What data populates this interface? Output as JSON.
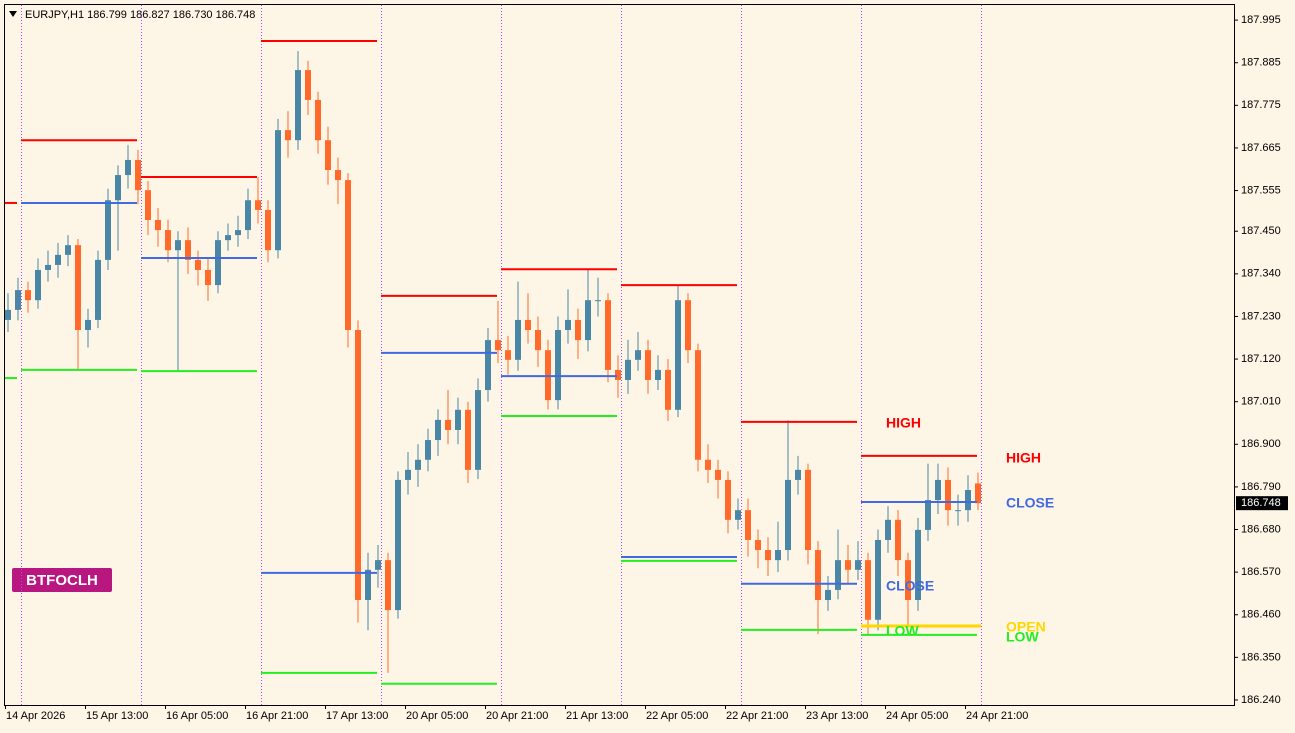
{
  "chart_data": {
    "type": "candlestick",
    "header": "EURJPY,H1  186.799 186.827 186.730 186.748",
    "badge": "BTFOCLH",
    "up_color": "#4a86a6",
    "down_color": "#ff6a2a",
    "ylim": [
      186.227,
      188.034
    ],
    "yticks": [
      187.995,
      187.885,
      187.775,
      187.665,
      187.555,
      {
        "value": 187.45,
        "label": "187.450"
      },
      {
        "value": 187.34,
        "label": "187.340"
      },
      {
        "value": 187.23,
        "label": "187.230"
      },
      {
        "value": 187.12,
        "label": "187.120"
      },
      {
        "value": 187.01,
        "label": "187.010"
      },
      {
        "value": 186.9,
        "label": "186.900"
      },
      {
        "value": 186.79,
        "label": "186.790"
      },
      {
        "value": 186.68,
        "label": "186.680"
      },
      {
        "value": 186.57,
        "label": "186.570"
      },
      {
        "value": 186.46,
        "label": "186.460"
      },
      {
        "value": 186.35,
        "label": "186.350"
      },
      {
        "value": 186.24,
        "label": "186.240"
      }
    ],
    "x_labels": [
      "14 Apr 2026",
      "15 Apr 13:00",
      "16 Apr 05:00",
      "16 Apr 21:00",
      "17 Apr 13:00",
      "20 Apr 05:00",
      "20 Apr 21:00",
      "21 Apr 13:00",
      "22 Apr 05:00",
      "22 Apr 21:00",
      "23 Apr 13:00",
      "24 Apr 05:00",
      "24 Apr 21:00"
    ],
    "open": [
      187.221,
      187.247,
      187.298,
      187.272,
      187.35,
      187.363,
      187.389,
      187.414,
      187.195,
      187.221,
      187.376,
      187.53,
      187.595,
      187.634,
      187.556,
      187.479,
      187.453,
      187.401,
      187.427,
      187.376,
      187.35,
      187.311,
      187.427,
      187.44,
      187.453,
      187.53,
      187.505,
      187.401,
      187.711,
      187.685,
      187.866,
      187.789,
      187.685,
      187.608,
      187.582,
      187.195,
      186.498,
      186.576,
      186.601,
      186.472,
      186.808,
      186.834,
      186.86,
      186.911,
      186.963,
      186.937,
      186.989,
      186.834,
      187.04,
      187.169,
      187.143,
      187.118,
      187.221,
      187.195,
      187.143,
      187.014,
      187.195,
      187.221,
      187.169,
      187.272,
      187.272,
      187.092,
      187.066,
      187.118,
      187.143,
      187.066,
      187.092,
      186.989,
      187.272,
      187.143,
      186.86,
      186.834,
      186.808,
      186.705,
      186.73,
      186.653,
      186.627,
      186.601,
      186.627,
      186.808,
      186.834,
      186.627,
      186.498,
      186.524,
      186.601,
      186.576,
      186.601,
      186.447,
      186.653,
      186.705,
      186.601,
      186.498,
      186.679,
      186.756,
      186.808,
      186.73,
      186.73,
      186.799
    ],
    "high": [
      187.29,
      187.33,
      187.32,
      187.38,
      187.4,
      187.42,
      187.44,
      187.43,
      187.25,
      187.4,
      187.56,
      187.62,
      187.672,
      187.66,
      187.58,
      187.51,
      187.48,
      187.45,
      187.46,
      187.4,
      187.38,
      187.45,
      187.47,
      187.49,
      187.56,
      187.59,
      187.53,
      187.74,
      187.76,
      187.915,
      187.89,
      187.81,
      187.72,
      187.64,
      187.6,
      187.22,
      186.62,
      186.64,
      186.62,
      186.83,
      186.88,
      186.9,
      186.94,
      186.99,
      187.04,
      187.02,
      187.01,
      187.07,
      187.2,
      187.27,
      187.18,
      187.32,
      187.29,
      187.23,
      187.17,
      187.23,
      187.3,
      187.25,
      187.35,
      187.33,
      187.29,
      187.13,
      187.17,
      187.19,
      187.17,
      187.13,
      187.12,
      187.31,
      187.29,
      187.16,
      186.9,
      186.86,
      186.83,
      186.76,
      186.76,
      186.68,
      186.66,
      186.7,
      186.962,
      186.87,
      186.85,
      186.65,
      186.56,
      186.68,
      186.64,
      186.65,
      186.62,
      186.68,
      186.74,
      186.73,
      186.62,
      186.71,
      186.85,
      186.85,
      186.84,
      186.77,
      186.82,
      186.827
    ],
    "low": [
      187.19,
      187.22,
      187.24,
      187.25,
      187.32,
      187.33,
      187.36,
      187.09,
      187.15,
      187.2,
      187.35,
      187.4,
      187.56,
      187.52,
      187.44,
      187.41,
      187.37,
      187.09,
      187.34,
      187.31,
      187.27,
      187.29,
      187.4,
      187.41,
      187.43,
      187.47,
      187.37,
      187.38,
      187.64,
      187.66,
      187.75,
      187.65,
      187.57,
      187.52,
      187.15,
      186.44,
      186.42,
      186.53,
      186.31,
      186.45,
      186.77,
      186.79,
      186.83,
      186.87,
      186.9,
      186.9,
      186.8,
      186.81,
      187.01,
      187.11,
      187.08,
      187.09,
      187.16,
      187.1,
      186.99,
      186.99,
      187.16,
      187.12,
      187.14,
      187.23,
      187.06,
      187.02,
      187.03,
      187.09,
      187.03,
      187.04,
      186.96,
      186.97,
      187.11,
      186.83,
      186.8,
      186.76,
      186.67,
      186.68,
      186.61,
      186.58,
      186.56,
      186.57,
      186.6,
      186.77,
      186.59,
      186.41,
      186.47,
      186.5,
      186.54,
      186.55,
      186.41,
      186.42,
      186.62,
      186.56,
      186.43,
      186.47,
      186.65,
      186.72,
      186.69,
      186.69,
      186.7,
      186.73
    ],
    "close": [
      187.247,
      187.298,
      187.272,
      187.35,
      187.363,
      187.389,
      187.414,
      187.195,
      187.221,
      187.376,
      187.53,
      187.595,
      187.634,
      187.556,
      187.479,
      187.453,
      187.401,
      187.427,
      187.376,
      187.35,
      187.311,
      187.427,
      187.44,
      187.453,
      187.53,
      187.505,
      187.401,
      187.711,
      187.685,
      187.866,
      187.789,
      187.685,
      187.608,
      187.582,
      187.195,
      186.498,
      186.576,
      186.601,
      186.472,
      186.808,
      186.834,
      186.86,
      186.911,
      186.963,
      186.937,
      186.989,
      186.834,
      187.04,
      187.169,
      187.143,
      187.118,
      187.221,
      187.195,
      187.143,
      187.014,
      187.195,
      187.221,
      187.169,
      187.272,
      187.272,
      187.092,
      187.066,
      187.118,
      187.143,
      187.066,
      187.092,
      186.989,
      187.272,
      187.143,
      186.86,
      186.834,
      186.808,
      186.705,
      186.73,
      186.653,
      186.627,
      186.601,
      186.627,
      186.808,
      186.834,
      186.627,
      186.498,
      186.524,
      186.601,
      186.576,
      186.601,
      186.447,
      186.653,
      186.705,
      186.601,
      186.498,
      186.679,
      186.756,
      186.808,
      186.73,
      186.73,
      186.782,
      186.748
    ],
    "last_price": 186.748,
    "levels": {
      "high": [
        187.523,
        187.685,
        187.59,
        187.941,
        187.283,
        187.352,
        187.311,
        186.958,
        186.87
      ],
      "close": [
        null,
        187.523,
        187.381,
        186.568,
        187.136,
        187.076,
        186.609,
        186.54,
        186.751
      ],
      "low": [
        187.071,
        187.092,
        187.089,
        186.31,
        186.282,
        186.973,
        186.599,
        186.421,
        186.408
      ]
    },
    "open_level": 186.431,
    "level_colors": {
      "high": "#ff0000",
      "close": "#4169e1",
      "low": "#22ee22",
      "open": "#ffd700"
    },
    "annotations": [
      {
        "text": "HIGH",
        "color": "#ff0000"
      },
      {
        "text": "CLOSE",
        "color": "#4169e1"
      },
      {
        "text": "LOW",
        "color": "#22ee22"
      },
      {
        "text": "HIGH",
        "color": "#ff0000"
      },
      {
        "text": "CLOSE",
        "color": "#4169e1"
      },
      {
        "text": "OPEN",
        "color": "#ffd700"
      },
      {
        "text": "LOW",
        "color": "#22ee22"
      }
    ]
  }
}
